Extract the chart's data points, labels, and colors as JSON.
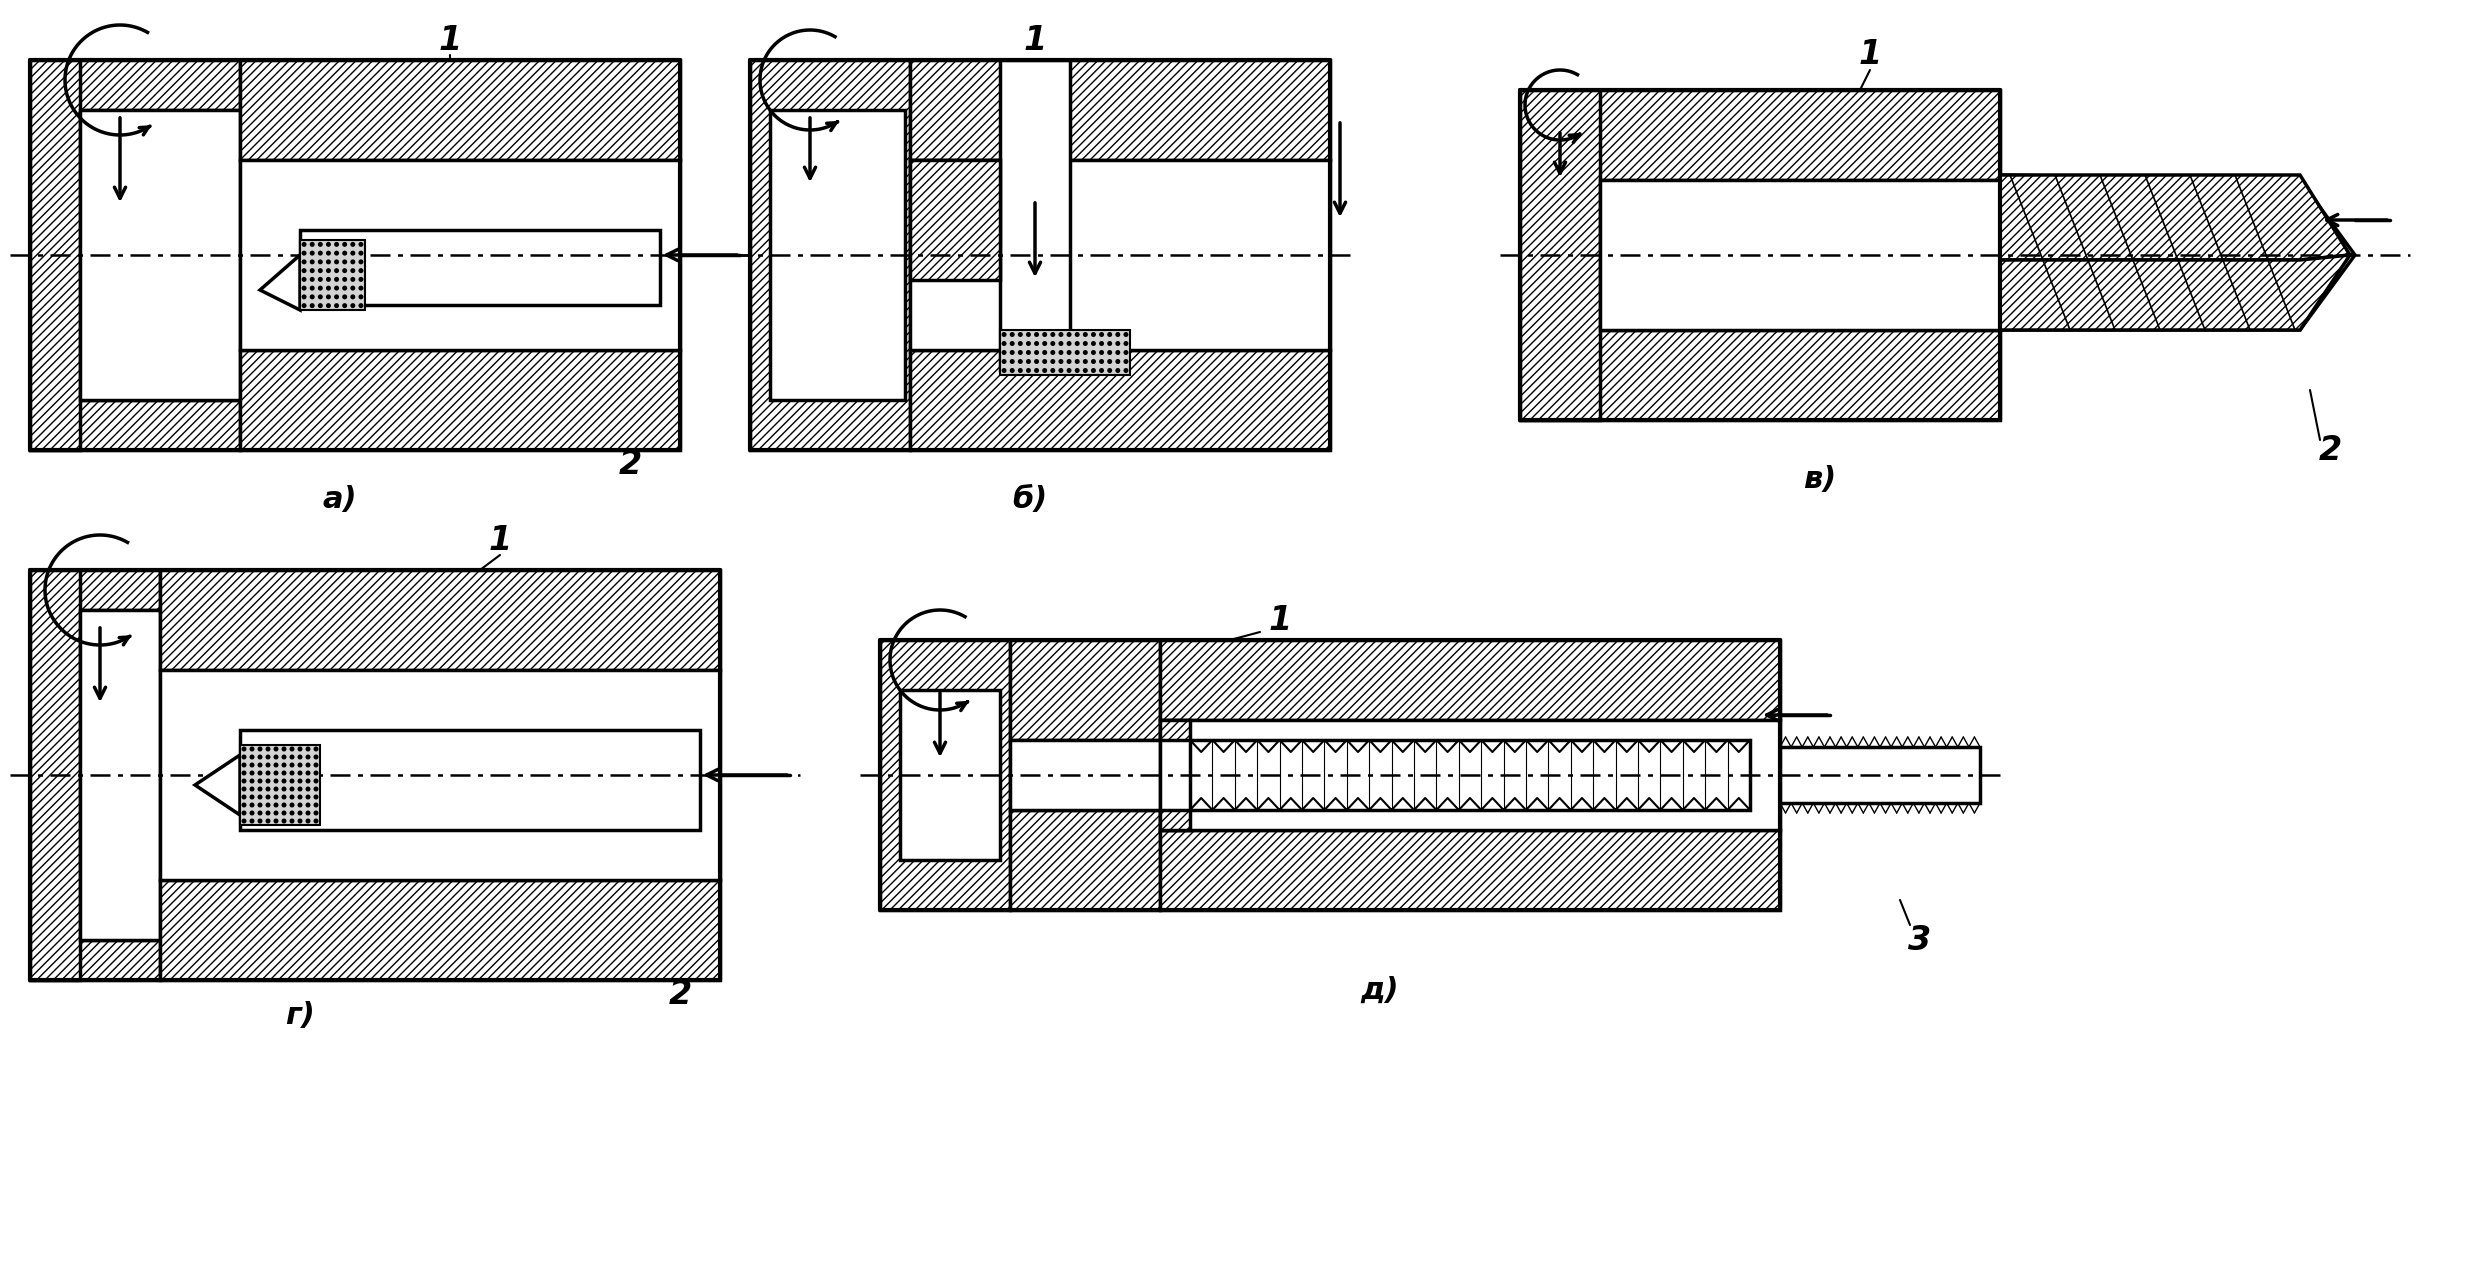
{
  "bg_color": "#ffffff",
  "lc": "#000000",
  "label_a": "а)",
  "label_b": "б)",
  "label_v": "в)",
  "label_g": "г)",
  "label_d": "д)",
  "fig_width": 24.74,
  "fig_height": 12.71,
  "dpi": 100
}
